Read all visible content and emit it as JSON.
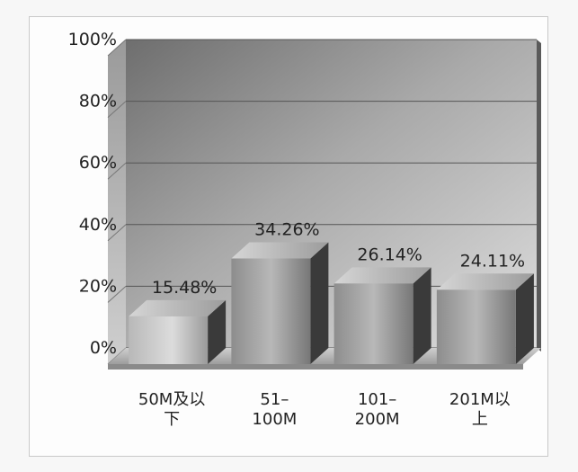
{
  "chart_data": {
    "type": "bar",
    "title": "",
    "xlabel": "",
    "ylabel": "",
    "ylim": [
      0,
      100
    ],
    "yticks": [
      0,
      20,
      40,
      60,
      80,
      100
    ],
    "ytick_labels": [
      "0%",
      "20%",
      "40%",
      "60%",
      "80%",
      "100%"
    ],
    "categories": [
      "50M及以下",
      "51–100M",
      "101–200M",
      "201M以上"
    ],
    "category_lines": [
      [
        "50M及以",
        "下"
      ],
      [
        "51–",
        "100M"
      ],
      [
        "101–",
        "200M"
      ],
      [
        "201M以",
        "上"
      ]
    ],
    "values": [
      15.48,
      34.26,
      26.14,
      24.11
    ],
    "data_labels": [
      "15.48%",
      "34.26%",
      "26.14%",
      "24.11%"
    ],
    "grid": true,
    "legend": "none",
    "style": "3d"
  }
}
